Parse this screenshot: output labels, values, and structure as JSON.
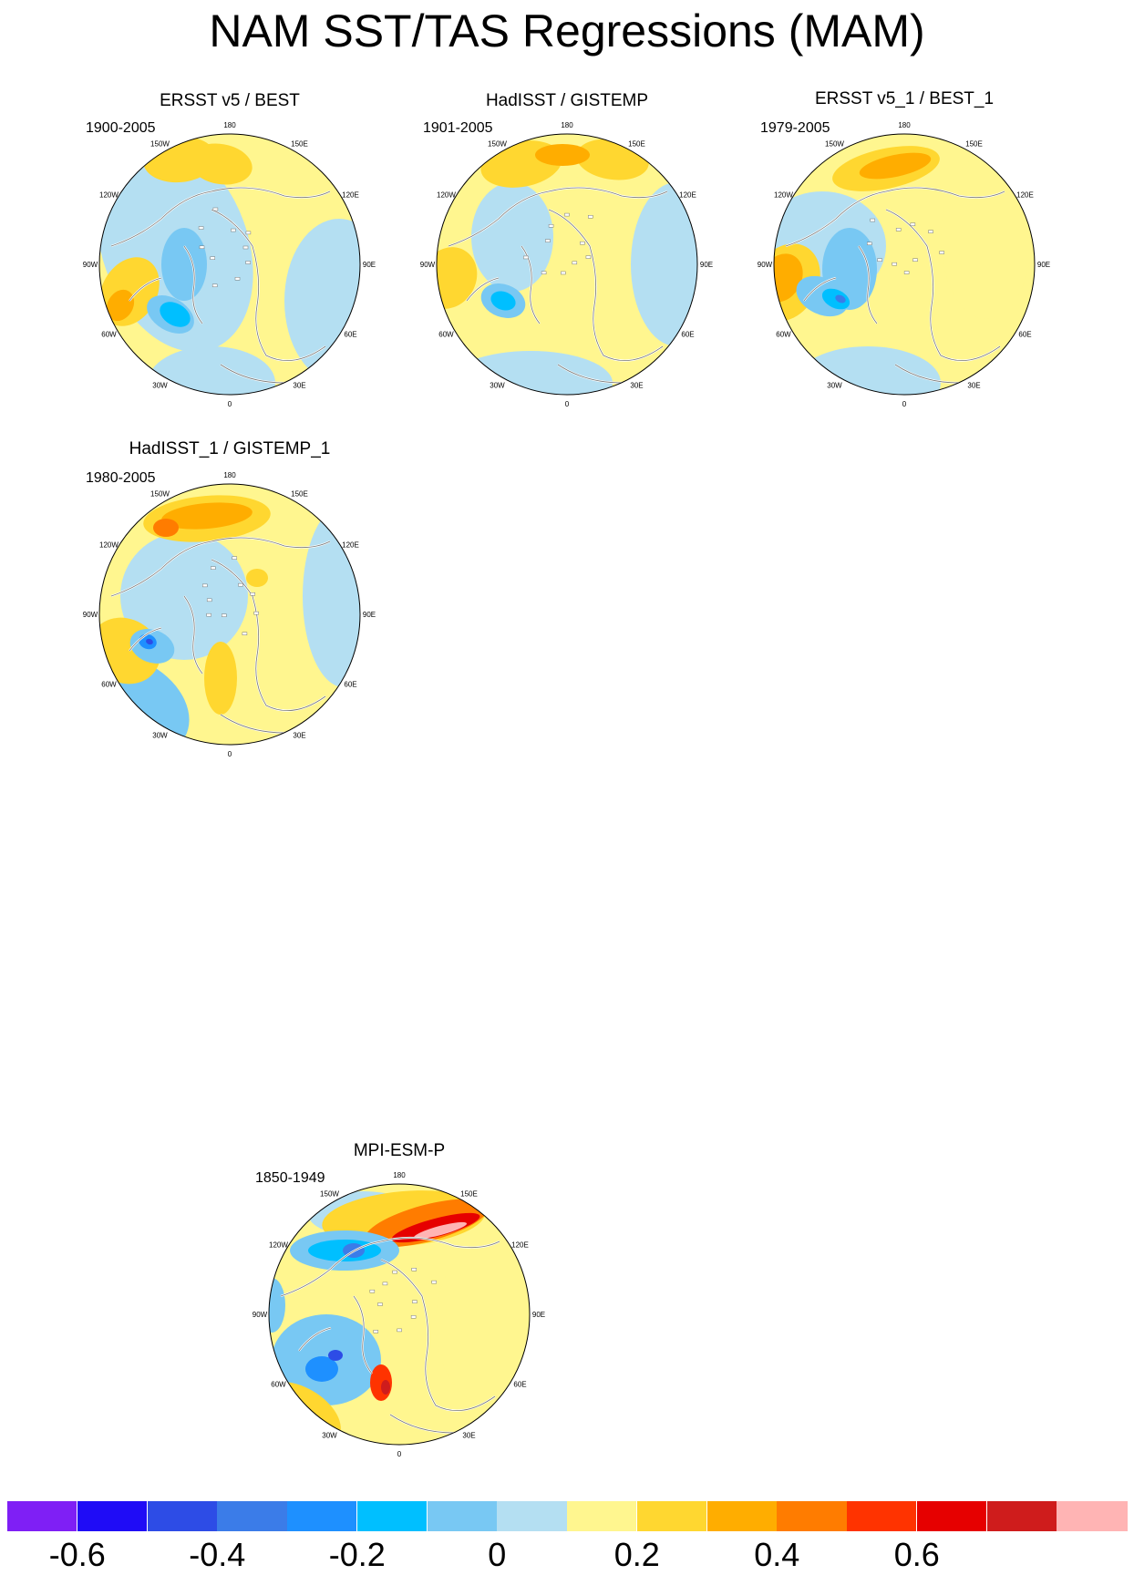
{
  "title": "NAM SST/TAS Regressions (MAM)",
  "panels": [
    {
      "title": "ERSST v5 / BEST",
      "period": "1900-2005"
    },
    {
      "title": "HadISST / GISTEMP",
      "period": "1901-2005"
    },
    {
      "title": "ERSST v5_1 / BEST_1",
      "period": "1979-2005"
    },
    {
      "title": "HadISST_1 / GISTEMP_1",
      "period": "1980-2005"
    },
    {
      "title": "MPI-ESM-P",
      "period": "1850-1949"
    }
  ],
  "lon_labels": [
    "180",
    "150E",
    "120E",
    "90E",
    "60E",
    "30E",
    "0",
    "30W",
    "60W",
    "90W",
    "120W",
    "150W"
  ],
  "colorbar": {
    "colors": [
      "#7f1ff5",
      "#1f0cf6",
      "#2d4ce6",
      "#3b7ce8",
      "#1e90ff",
      "#00bfff",
      "#78c8f3",
      "#b4dff2",
      "#fff68f",
      "#ffd730",
      "#ffad00",
      "#ff7c00",
      "#ff3300",
      "#e60000",
      "#cf1c1c",
      "#ffb4b4"
    ],
    "tick_values": [
      "-0.6",
      "-0.4",
      "-0.2",
      "0",
      "0.2",
      "0.4",
      "0.6"
    ]
  }
}
